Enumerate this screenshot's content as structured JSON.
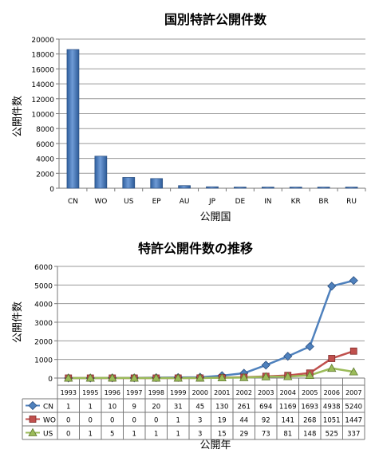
{
  "chart_data": [
    {
      "type": "bar",
      "title": "国別特許公開件数",
      "xlabel": "公開国",
      "ylabel": "公開件数",
      "ylim": [
        0,
        20000
      ],
      "yticks": [
        "0",
        "2000",
        "4000",
        "6000",
        "8000",
        "10000",
        "12000",
        "14000",
        "16000",
        "18000",
        "20000"
      ],
      "categories": [
        "CN",
        "WO",
        "US",
        "EP",
        "AU",
        "JP",
        "DE",
        "IN",
        "KR",
        "BR",
        "RU"
      ],
      "values": [
        18600,
        4300,
        1450,
        1300,
        350,
        200,
        160,
        120,
        100,
        60,
        40
      ],
      "grid": true,
      "bar_color": "#4f81bd"
    },
    {
      "type": "line",
      "title": "特許公開件数の推移",
      "xlabel": "公開年",
      "ylabel": "公開件数",
      "ylim": [
        0,
        6000
      ],
      "yticks": [
        "0",
        "1000",
        "2000",
        "3000",
        "4000",
        "5000",
        "6000"
      ],
      "x": [
        "1993",
        "1995",
        "1996",
        "1997",
        "1998",
        "1999",
        "2000",
        "2001",
        "2002",
        "2003",
        "2004",
        "2005",
        "2006",
        "2007"
      ],
      "series": [
        {
          "name": "CN",
          "color": "#4f81bd",
          "marker": "diamond",
          "values": [
            1,
            1,
            10,
            9,
            20,
            31,
            45,
            130,
            261,
            694,
            1169,
            1693,
            4938,
            5240
          ]
        },
        {
          "name": "WO",
          "color": "#c0504d",
          "marker": "square",
          "values": [
            0,
            0,
            0,
            0,
            0,
            1,
            3,
            19,
            44,
            92,
            141,
            268,
            1051,
            1447
          ]
        },
        {
          "name": "US",
          "color": "#9bbb59",
          "marker": "triangle",
          "values": [
            0,
            1,
            5,
            1,
            1,
            1,
            3,
            15,
            29,
            73,
            81,
            148,
            525,
            337
          ]
        }
      ],
      "data_table": true,
      "grid": true
    }
  ]
}
